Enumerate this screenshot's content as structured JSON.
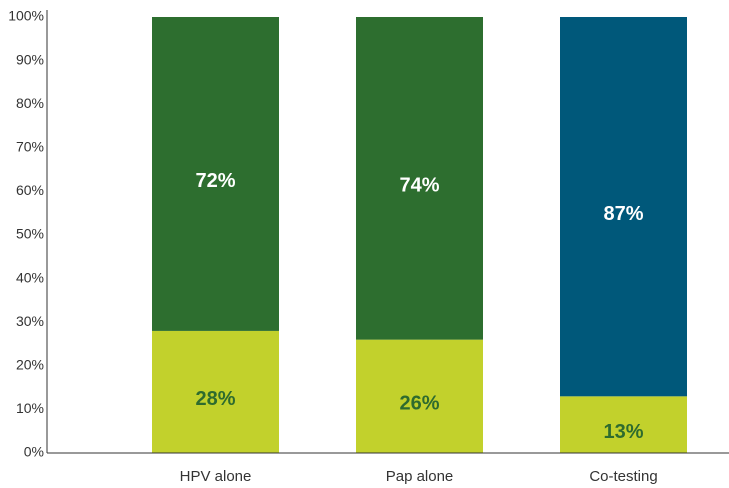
{
  "chart_data": {
    "type": "stacked_bar",
    "categories": [
      "HPV alone",
      "Pap alone",
      "Co-testing"
    ],
    "series": [
      {
        "values": [
          28,
          26,
          13
        ],
        "value_labels": [
          "28%",
          "26%",
          "13%"
        ],
        "color": "#c2d12c",
        "label_color": "#2e6b2e"
      },
      {
        "values": [
          72,
          74,
          87
        ],
        "value_labels": [
          "72%",
          "74%",
          "87%"
        ],
        "colors": [
          "#2d6e2f",
          "#2d6e2f",
          "#00587a"
        ],
        "label_color": "#ffffff"
      }
    ],
    "ylim": [
      0,
      100
    ],
    "yticks": [
      {
        "value": 0,
        "label": "0%"
      },
      {
        "value": 10,
        "label": "10%"
      },
      {
        "value": 20,
        "label": "20%"
      },
      {
        "value": 30,
        "label": "30%"
      },
      {
        "value": 40,
        "label": "40%"
      },
      {
        "value": 50,
        "label": "50%"
      },
      {
        "value": 60,
        "label": "60%"
      },
      {
        "value": 70,
        "label": "70%"
      },
      {
        "value": 80,
        "label": "80%"
      },
      {
        "value": 90,
        "label": "90%"
      },
      {
        "value": 100,
        "label": "100%"
      }
    ],
    "grid": false
  }
}
